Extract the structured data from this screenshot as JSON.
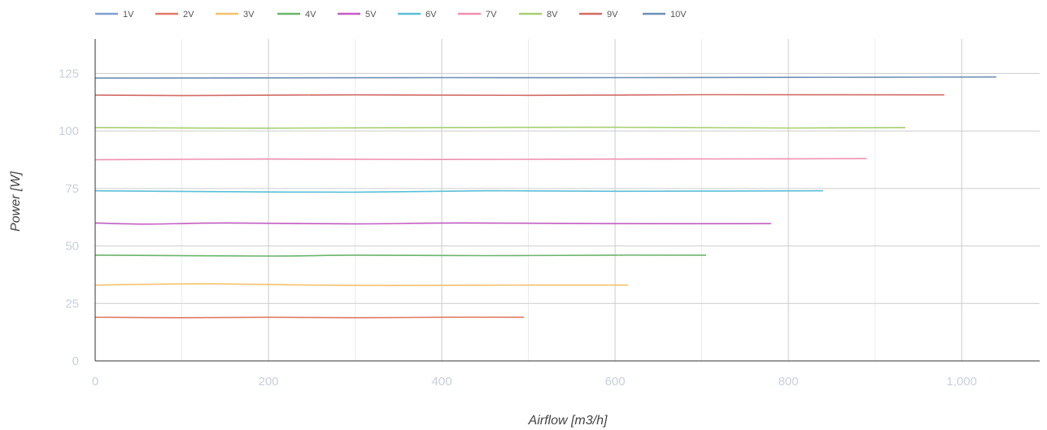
{
  "chart_data": {
    "type": "line",
    "xlabel": "Airflow [m3/h]",
    "ylabel": "Power [W]",
    "xlim": [
      0,
      1090
    ],
    "ylim": [
      0,
      140
    ],
    "x_ticks": [
      0,
      200,
      400,
      600,
      800,
      1000
    ],
    "x_tick_labels": [
      "0",
      "200",
      "400",
      "600",
      "800",
      "1,000"
    ],
    "x_minor_grid": [
      100,
      300,
      500,
      700,
      900
    ],
    "y_ticks": [
      0,
      25,
      50,
      75,
      100,
      125
    ],
    "y_tick_labels": [
      "0",
      "25",
      "50",
      "75",
      "100",
      "125"
    ],
    "grid": true,
    "legend_position": "top-left",
    "series": [
      {
        "name": "1V",
        "color": "#7f9fd0",
        "x": [],
        "y": []
      },
      {
        "name": "2V",
        "color": "#e07b62",
        "x": [
          0,
          100,
          200,
          300,
          400,
          495
        ],
        "y": [
          19,
          18.8,
          19,
          18.8,
          19,
          19
        ]
      },
      {
        "name": "3V",
        "color": "#f5c26b",
        "x": [
          0,
          120,
          250,
          350,
          500,
          615
        ],
        "y": [
          33,
          33.5,
          33,
          32.8,
          33,
          33
        ]
      },
      {
        "name": "4V",
        "color": "#6ab46a",
        "x": [
          0,
          200,
          300,
          450,
          600,
          705
        ],
        "y": [
          46,
          45.6,
          46,
          45.8,
          46,
          46
        ]
      },
      {
        "name": "5V",
        "color": "#c25cc2",
        "x": [
          0,
          60,
          150,
          300,
          420,
          600,
          780
        ],
        "y": [
          60,
          59.5,
          60,
          59.6,
          60,
          59.7,
          59.7
        ]
      },
      {
        "name": "6V",
        "color": "#5bbfd8",
        "x": [
          0,
          150,
          300,
          450,
          600,
          840
        ],
        "y": [
          74,
          73.6,
          73.4,
          74,
          73.8,
          74
        ]
      },
      {
        "name": "7V",
        "color": "#f08fb0",
        "x": [
          0,
          200,
          400,
          600,
          800,
          890
        ],
        "y": [
          87.5,
          87.8,
          87.6,
          87.8,
          87.9,
          88
        ]
      },
      {
        "name": "8V",
        "color": "#a6cf70",
        "x": [
          0,
          200,
          400,
          600,
          800,
          935
        ],
        "y": [
          101.5,
          101.2,
          101.5,
          101.6,
          101.3,
          101.5
        ]
      },
      {
        "name": "9V",
        "color": "#d26a64",
        "x": [
          0,
          100,
          300,
          500,
          700,
          980
        ],
        "y": [
          115.6,
          115.4,
          115.7,
          115.5,
          115.8,
          115.7
        ]
      },
      {
        "name": "10V",
        "color": "#6f8fb5",
        "x": [
          0,
          200,
          400,
          600,
          800,
          1040
        ],
        "y": [
          123,
          123.1,
          123.2,
          123.2,
          123.3,
          123.5
        ]
      }
    ]
  }
}
